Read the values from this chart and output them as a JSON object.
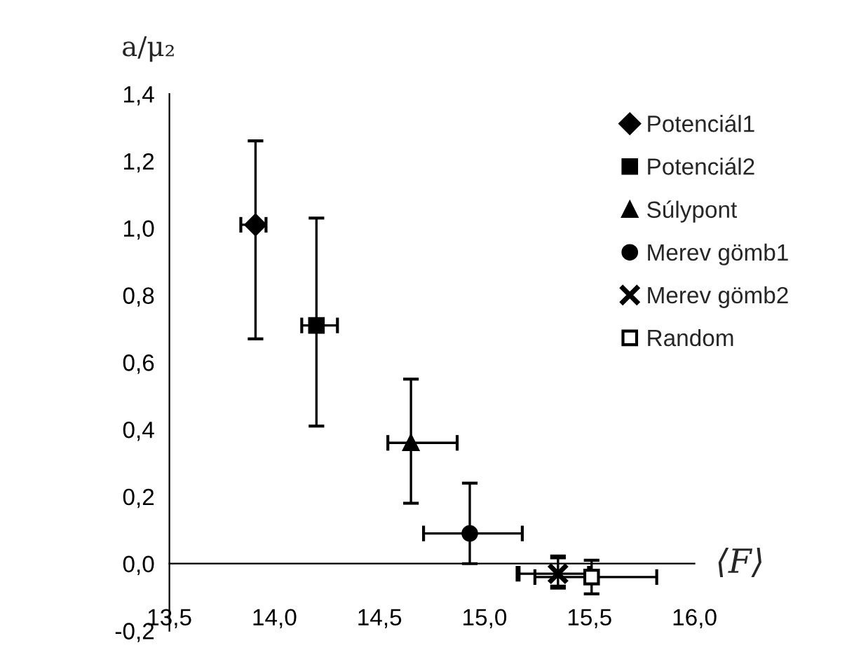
{
  "chart_data": {
    "type": "scatter",
    "ylabel": "a/μ₂",
    "xlabel": "⟨F⟩",
    "xlim": [
      13.5,
      16.0
    ],
    "ylim": [
      -0.2,
      1.4
    ],
    "xticks": [
      {
        "value": 13.5,
        "label": "13,5"
      },
      {
        "value": 14.0,
        "label": "14,0"
      },
      {
        "value": 14.5,
        "label": "14,5"
      },
      {
        "value": 15.0,
        "label": "15,0"
      },
      {
        "value": 15.5,
        "label": "15,5"
      },
      {
        "value": 16.0,
        "label": "16,0"
      }
    ],
    "yticks": [
      {
        "value": -0.2,
        "label": "-0,2"
      },
      {
        "value": 0.0,
        "label": "0,0"
      },
      {
        "value": 0.2,
        "label": "0,2"
      },
      {
        "value": 0.4,
        "label": "0,4"
      },
      {
        "value": 0.6,
        "label": "0,6"
      },
      {
        "value": 0.8,
        "label": "0,8"
      },
      {
        "value": 1.0,
        "label": "1,0"
      },
      {
        "value": 1.2,
        "label": "1,2"
      },
      {
        "value": 1.4,
        "label": "1,4"
      }
    ],
    "legend": "top right",
    "grid": false,
    "series": [
      {
        "name": "Potenciál1",
        "marker": "diamond",
        "color": "#000000",
        "x": [
          13.91
        ],
        "values": [
          1.01
        ],
        "errors": [
          [
            0.67,
            1.26
          ]
        ],
        "xerrors": [
          [
            13.84,
            13.96
          ]
        ]
      },
      {
        "name": "Potenciál2",
        "marker": "square",
        "color": "#000000",
        "x": [
          14.2
        ],
        "values": [
          0.71
        ],
        "errors": [
          [
            0.41,
            1.03
          ]
        ],
        "xerrors": [
          [
            14.13,
            14.3
          ]
        ]
      },
      {
        "name": "Súlypont",
        "marker": "triangle",
        "color": "#000000",
        "x": [
          14.65
        ],
        "values": [
          0.36
        ],
        "errors": [
          [
            0.18,
            0.55
          ]
        ],
        "xerrors": [
          [
            14.54,
            14.87
          ]
        ]
      },
      {
        "name": "Merev gömb1",
        "marker": "circle",
        "color": "#000000",
        "x": [
          14.93
        ],
        "values": [
          0.09
        ],
        "errors": [
          [
            0.0,
            0.24
          ]
        ],
        "xerrors": [
          [
            14.71,
            15.18
          ]
        ]
      },
      {
        "name": "Merev gömb2",
        "marker": "cross",
        "color": "#000000",
        "x": [
          15.35
        ],
        "values": [
          -0.03
        ],
        "errors": [
          [
            -0.07,
            0.02
          ]
        ],
        "xerrors": [
          [
            15.16,
            15.5
          ]
        ]
      },
      {
        "name": "Random",
        "marker": "square",
        "color": "#ffffff",
        "x": [
          15.51
        ],
        "values": [
          -0.04
        ],
        "errors": [
          [
            -0.09,
            0.01
          ]
        ],
        "xerrors": [
          [
            15.24,
            15.82
          ]
        ]
      }
    ]
  }
}
